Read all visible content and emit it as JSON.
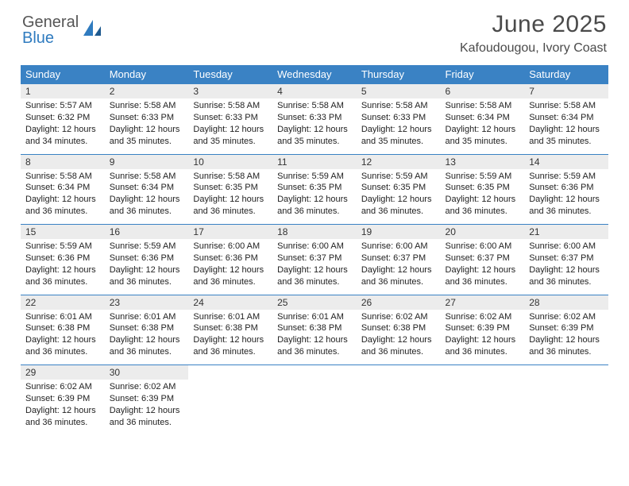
{
  "brand": {
    "part1": "General",
    "part2": "Blue"
  },
  "title": "June 2025",
  "subtitle": "Kafoudougou, Ivory Coast",
  "colors": {
    "header_bg": "#3a82c4",
    "header_text": "#ffffff",
    "daynum_bg": "#ececec",
    "row_border": "#3a82c4",
    "title_color": "#4a4a4a",
    "brand_gray": "#555555",
    "brand_blue": "#2f7bbf",
    "cell_text": "#222222"
  },
  "columns": [
    "Sunday",
    "Monday",
    "Tuesday",
    "Wednesday",
    "Thursday",
    "Friday",
    "Saturday"
  ],
  "weeks": [
    [
      {
        "day": 1,
        "sunrise": "5:57 AM",
        "sunset": "6:32 PM",
        "daylight": "12 hours and 34 minutes."
      },
      {
        "day": 2,
        "sunrise": "5:58 AM",
        "sunset": "6:33 PM",
        "daylight": "12 hours and 35 minutes."
      },
      {
        "day": 3,
        "sunrise": "5:58 AM",
        "sunset": "6:33 PM",
        "daylight": "12 hours and 35 minutes."
      },
      {
        "day": 4,
        "sunrise": "5:58 AM",
        "sunset": "6:33 PM",
        "daylight": "12 hours and 35 minutes."
      },
      {
        "day": 5,
        "sunrise": "5:58 AM",
        "sunset": "6:33 PM",
        "daylight": "12 hours and 35 minutes."
      },
      {
        "day": 6,
        "sunrise": "5:58 AM",
        "sunset": "6:34 PM",
        "daylight": "12 hours and 35 minutes."
      },
      {
        "day": 7,
        "sunrise": "5:58 AM",
        "sunset": "6:34 PM",
        "daylight": "12 hours and 35 minutes."
      }
    ],
    [
      {
        "day": 8,
        "sunrise": "5:58 AM",
        "sunset": "6:34 PM",
        "daylight": "12 hours and 36 minutes."
      },
      {
        "day": 9,
        "sunrise": "5:58 AM",
        "sunset": "6:34 PM",
        "daylight": "12 hours and 36 minutes."
      },
      {
        "day": 10,
        "sunrise": "5:58 AM",
        "sunset": "6:35 PM",
        "daylight": "12 hours and 36 minutes."
      },
      {
        "day": 11,
        "sunrise": "5:59 AM",
        "sunset": "6:35 PM",
        "daylight": "12 hours and 36 minutes."
      },
      {
        "day": 12,
        "sunrise": "5:59 AM",
        "sunset": "6:35 PM",
        "daylight": "12 hours and 36 minutes."
      },
      {
        "day": 13,
        "sunrise": "5:59 AM",
        "sunset": "6:35 PM",
        "daylight": "12 hours and 36 minutes."
      },
      {
        "day": 14,
        "sunrise": "5:59 AM",
        "sunset": "6:36 PM",
        "daylight": "12 hours and 36 minutes."
      }
    ],
    [
      {
        "day": 15,
        "sunrise": "5:59 AM",
        "sunset": "6:36 PM",
        "daylight": "12 hours and 36 minutes."
      },
      {
        "day": 16,
        "sunrise": "5:59 AM",
        "sunset": "6:36 PM",
        "daylight": "12 hours and 36 minutes."
      },
      {
        "day": 17,
        "sunrise": "6:00 AM",
        "sunset": "6:36 PM",
        "daylight": "12 hours and 36 minutes."
      },
      {
        "day": 18,
        "sunrise": "6:00 AM",
        "sunset": "6:37 PM",
        "daylight": "12 hours and 36 minutes."
      },
      {
        "day": 19,
        "sunrise": "6:00 AM",
        "sunset": "6:37 PM",
        "daylight": "12 hours and 36 minutes."
      },
      {
        "day": 20,
        "sunrise": "6:00 AM",
        "sunset": "6:37 PM",
        "daylight": "12 hours and 36 minutes."
      },
      {
        "day": 21,
        "sunrise": "6:00 AM",
        "sunset": "6:37 PM",
        "daylight": "12 hours and 36 minutes."
      }
    ],
    [
      {
        "day": 22,
        "sunrise": "6:01 AM",
        "sunset": "6:38 PM",
        "daylight": "12 hours and 36 minutes."
      },
      {
        "day": 23,
        "sunrise": "6:01 AM",
        "sunset": "6:38 PM",
        "daylight": "12 hours and 36 minutes."
      },
      {
        "day": 24,
        "sunrise": "6:01 AM",
        "sunset": "6:38 PM",
        "daylight": "12 hours and 36 minutes."
      },
      {
        "day": 25,
        "sunrise": "6:01 AM",
        "sunset": "6:38 PM",
        "daylight": "12 hours and 36 minutes."
      },
      {
        "day": 26,
        "sunrise": "6:02 AM",
        "sunset": "6:38 PM",
        "daylight": "12 hours and 36 minutes."
      },
      {
        "day": 27,
        "sunrise": "6:02 AM",
        "sunset": "6:39 PM",
        "daylight": "12 hours and 36 minutes."
      },
      {
        "day": 28,
        "sunrise": "6:02 AM",
        "sunset": "6:39 PM",
        "daylight": "12 hours and 36 minutes."
      }
    ],
    [
      {
        "day": 29,
        "sunrise": "6:02 AM",
        "sunset": "6:39 PM",
        "daylight": "12 hours and 36 minutes."
      },
      {
        "day": 30,
        "sunrise": "6:02 AM",
        "sunset": "6:39 PM",
        "daylight": "12 hours and 36 minutes."
      },
      null,
      null,
      null,
      null,
      null
    ]
  ],
  "labels": {
    "sunrise": "Sunrise:",
    "sunset": "Sunset:",
    "daylight": "Daylight:"
  }
}
